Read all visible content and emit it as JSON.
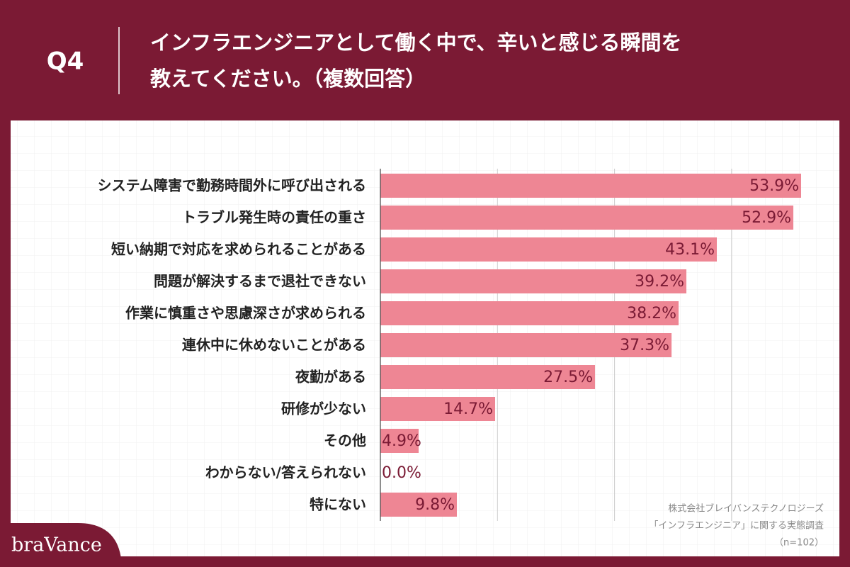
{
  "question_number": "Q4",
  "brand": "braVance",
  "source": [
    "株式会社ブレイバンステクノロジーズ",
    "「インフラエンジニア」に関する実態調査",
    "（n=102）"
  ],
  "chart_data": {
    "type": "bar",
    "orientation": "horizontal",
    "title": [
      "インフラエンジニアとして働く中で、辛いと感じる瞬間を",
      "教えてください。（複数回答）"
    ],
    "categories": [
      "システム障害で勤務時間外に呼び出される",
      "トラブル発生時の責任の重さ",
      "短い納期で対応を求められることがある",
      "問題が解決するまで退社できない",
      "作業に慎重さや思慮深さが求められる",
      "連休中に休めないことがある",
      "夜勤がある",
      "研修が少ない",
      "その他",
      "わからない/答えられない",
      "特にない"
    ],
    "values": [
      53.9,
      52.9,
      43.1,
      39.2,
      38.2,
      37.3,
      27.5,
      14.7,
      4.9,
      0.0,
      9.8
    ],
    "value_labels": [
      "53.9%",
      "52.9%",
      "43.1%",
      "39.2%",
      "38.2%",
      "37.3%",
      "27.5%",
      "14.7%",
      "4.9%",
      "0.0%",
      "9.8%"
    ],
    "color": "#ee8694",
    "label_color": "#7a1a34",
    "xlim": [
      0,
      58.8
    ],
    "gridlines": [
      15,
      30,
      45
    ],
    "grid": true
  }
}
